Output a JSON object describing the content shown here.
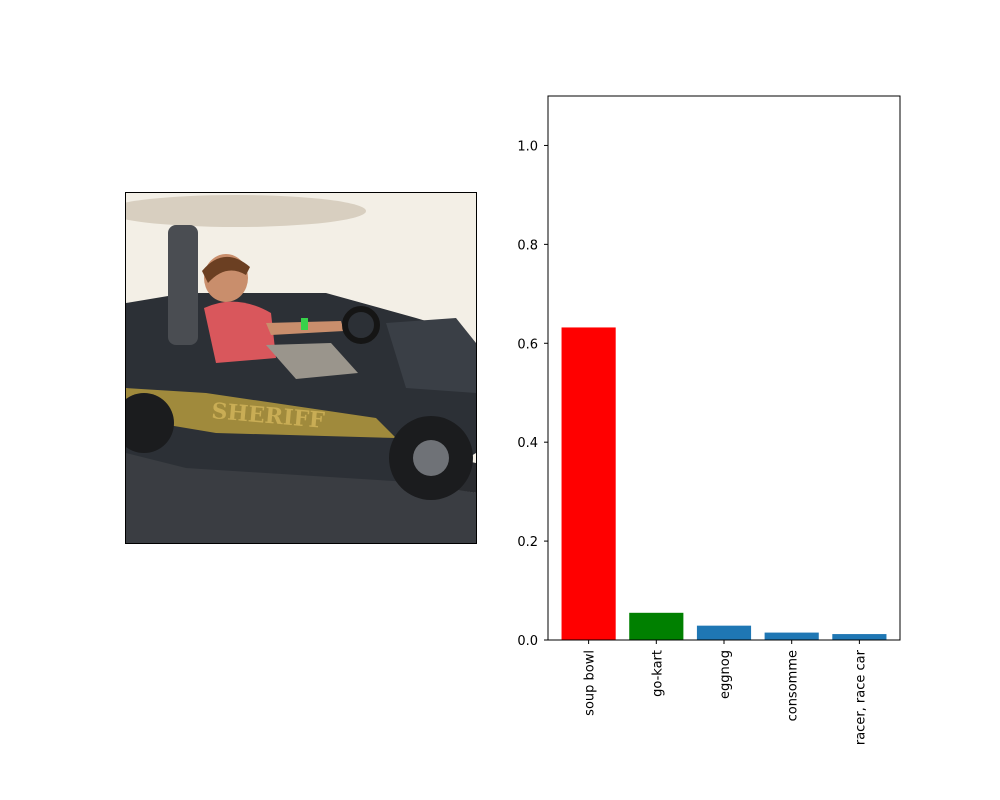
{
  "image_panel": {
    "subject": "boy driving a black go-kart",
    "kart_lettering": "SHERIFF"
  },
  "chart_data": {
    "type": "bar",
    "categories": [
      "soup bowl",
      "go-kart",
      "eggnog",
      "consomme",
      "racer, race car"
    ],
    "values": [
      0.632,
      0.055,
      0.029,
      0.015,
      0.012
    ],
    "colors": [
      "#ff0000",
      "#008000",
      "#1f77b4",
      "#1f77b4",
      "#1f77b4"
    ],
    "title": "",
    "xlabel": "",
    "ylabel": "",
    "ylim": [
      0,
      1.1
    ],
    "yticks": [
      "0.0",
      "0.2",
      "0.4",
      "0.6",
      "0.8",
      "1.0"
    ],
    "grid": false
  }
}
